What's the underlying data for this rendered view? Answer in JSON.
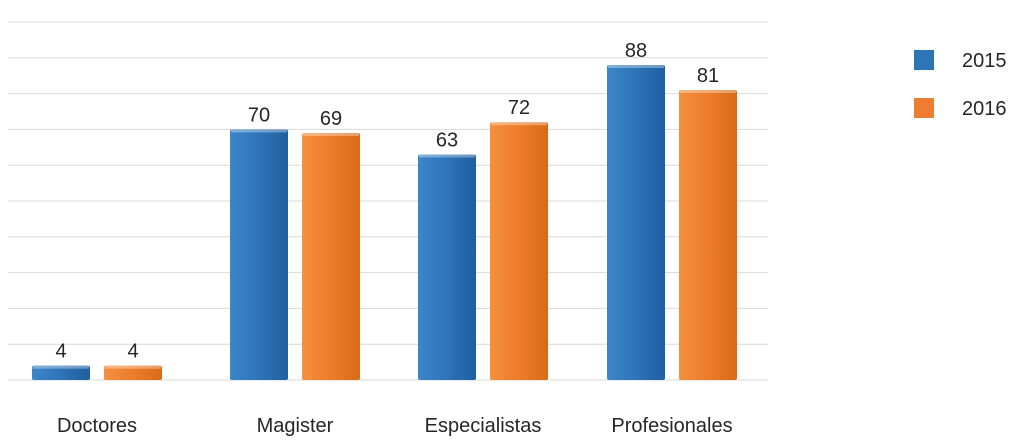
{
  "chart_data": {
    "type": "bar",
    "title": "",
    "xlabel": "",
    "ylabel": "",
    "categories": [
      "Doctores",
      "Magister",
      "Especialistas",
      "Profesionales"
    ],
    "series": [
      {
        "name": "2015",
        "values": [
          4,
          70,
          63,
          88
        ],
        "color": "#2E75B6"
      },
      {
        "name": "2016",
        "values": [
          4,
          69,
          72,
          81
        ],
        "color": "#ED7D31"
      }
    ],
    "ylim": [
      0,
      100
    ],
    "gridlines": true,
    "legend": "right",
    "data_labels": true
  }
}
